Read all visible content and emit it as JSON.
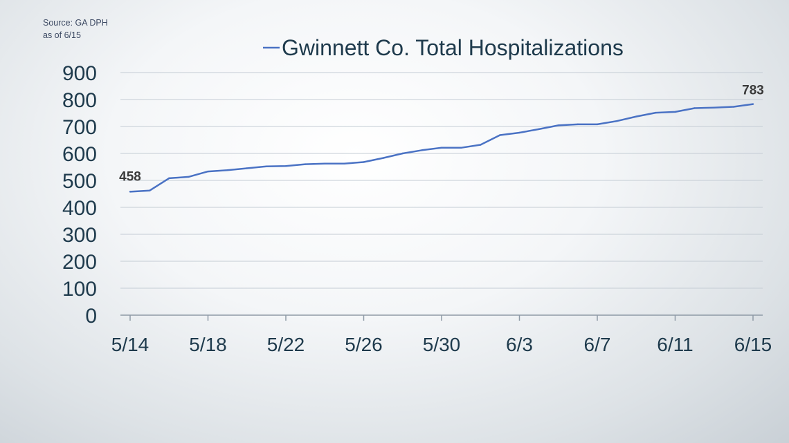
{
  "source_note": {
    "line1": "Source: GA DPH",
    "line2": "as of 6/15"
  },
  "chart_data": {
    "type": "line",
    "title": "",
    "xlabel": "",
    "ylabel": "",
    "ylim": [
      0,
      900
    ],
    "y_ticks": [
      0,
      100,
      200,
      300,
      400,
      500,
      600,
      700,
      800,
      900
    ],
    "x_tick_labels": [
      "5/14",
      "5/18",
      "5/22",
      "5/26",
      "5/30",
      "6/3",
      "6/7",
      "6/11",
      "6/15"
    ],
    "grid": true,
    "legend_position": "top",
    "line_color": "#4a72c4",
    "x": [
      "5/14",
      "5/15",
      "5/16",
      "5/17",
      "5/18",
      "5/19",
      "5/20",
      "5/21",
      "5/22",
      "5/23",
      "5/24",
      "5/25",
      "5/26",
      "5/27",
      "5/28",
      "5/29",
      "5/30",
      "5/31",
      "6/1",
      "6/2",
      "6/3",
      "6/4",
      "6/5",
      "6/6",
      "6/7",
      "6/8",
      "6/9",
      "6/10",
      "6/11",
      "6/12",
      "6/13",
      "6/14",
      "6/15"
    ],
    "series": [
      {
        "name": "Gwinnett Co. Total Hospitalizations",
        "values": [
          458,
          462,
          508,
          513,
          533,
          538,
          545,
          552,
          553,
          560,
          562,
          562,
          568,
          583,
          600,
          612,
          621,
          621,
          632,
          668,
          677,
          690,
          704,
          708,
          708,
          720,
          737,
          751,
          754,
          768,
          770,
          773,
          783
        ]
      }
    ],
    "annotations": [
      {
        "label": "458",
        "x": "5/14",
        "y": 458
      },
      {
        "label": "783",
        "x": "6/15",
        "y": 783
      }
    ]
  }
}
